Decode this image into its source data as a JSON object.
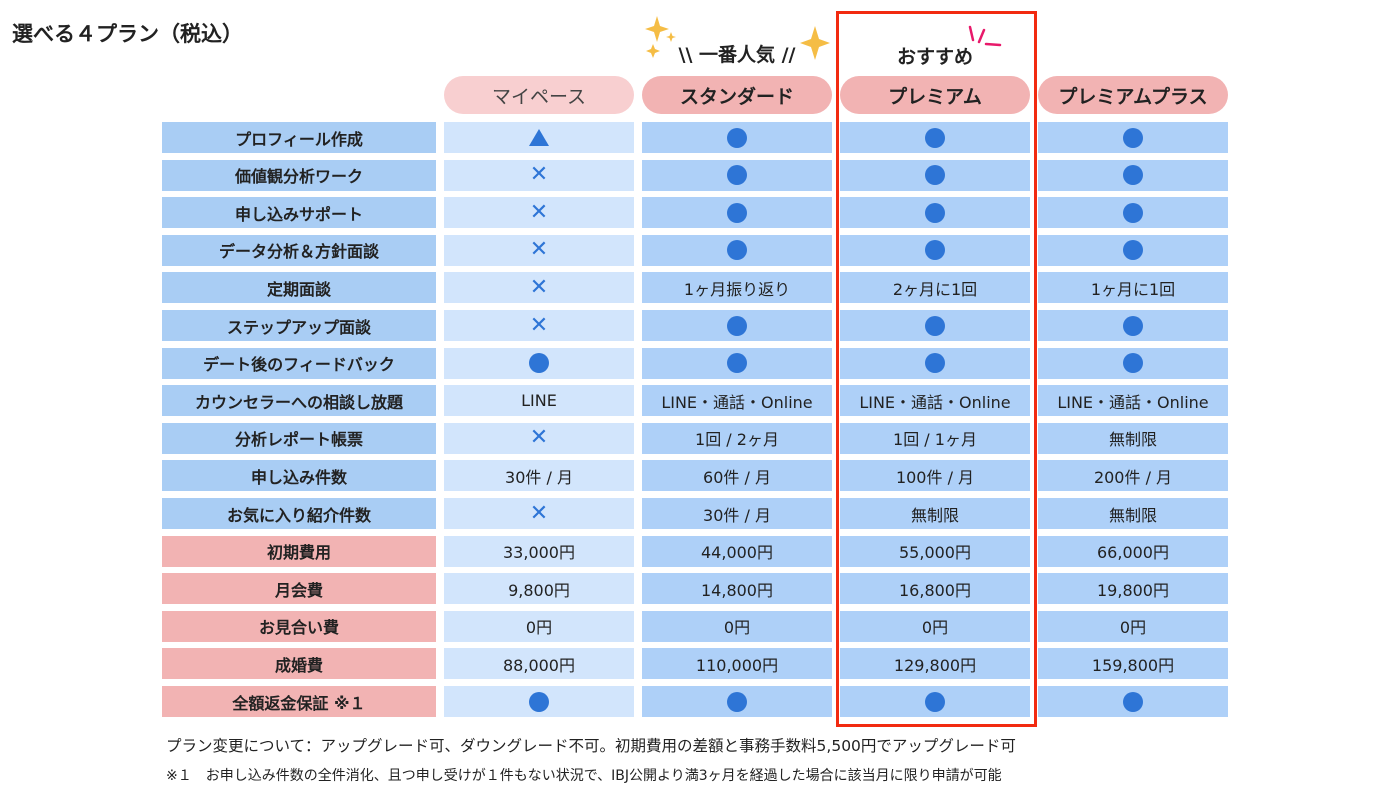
{
  "title": "選べる４プラン（税込）",
  "badges": {
    "popular": "\\\\ 一番人気 //",
    "recommend": "おすすめ"
  },
  "colors": {
    "highlight_border": "#f22a10",
    "icon": "#2e75d6",
    "feature_label": "#a9cdf4",
    "fee_label": "#f2b3b3"
  },
  "plans": [
    "マイペース",
    "スタンダード",
    "プレミアム",
    "プレミアムプラス"
  ],
  "rows": [
    {
      "label": "プロフィール作成",
      "type": "feature",
      "values": [
        "triangle",
        "circle",
        "circle",
        "circle"
      ]
    },
    {
      "label": "価値観分析ワーク",
      "type": "feature",
      "values": [
        "cross",
        "circle",
        "circle",
        "circle"
      ]
    },
    {
      "label": "申し込みサポート",
      "type": "feature",
      "values": [
        "cross",
        "circle",
        "circle",
        "circle"
      ]
    },
    {
      "label": "データ分析＆方針面談",
      "type": "feature",
      "values": [
        "cross",
        "circle",
        "circle",
        "circle"
      ]
    },
    {
      "label": "定期面談",
      "type": "feature",
      "values": [
        "cross",
        "1ヶ月振り返り",
        "2ヶ月に1回",
        "1ヶ月に1回"
      ]
    },
    {
      "label": "ステップアップ面談",
      "type": "feature",
      "values": [
        "cross",
        "circle",
        "circle",
        "circle"
      ]
    },
    {
      "label": "デート後のフィードバック",
      "type": "feature",
      "values": [
        "circle",
        "circle",
        "circle",
        "circle"
      ]
    },
    {
      "label": "カウンセラーへの相談し放題",
      "type": "feature",
      "values": [
        "LINE",
        "LINE・通話・Online",
        "LINE・通話・Online",
        "LINE・通話・Online"
      ]
    },
    {
      "label": "分析レポート帳票",
      "type": "feature",
      "values": [
        "cross",
        "1回 / 2ヶ月",
        "1回 / 1ヶ月",
        "無制限"
      ]
    },
    {
      "label": "申し込み件数",
      "type": "feature",
      "values": [
        "30件 / 月",
        "60件 / 月",
        "100件 / 月",
        "200件 / 月"
      ]
    },
    {
      "label": "お気に入り紹介件数",
      "type": "feature",
      "values": [
        "cross",
        "30件 / 月",
        "無制限",
        "無制限"
      ]
    },
    {
      "label": "初期費用",
      "type": "fee",
      "values": [
        "33,000円",
        "44,000円",
        "55,000円",
        "66,000円"
      ]
    },
    {
      "label": "月会費",
      "type": "fee",
      "values": [
        "9,800円",
        "14,800円",
        "16,800円",
        "19,800円"
      ]
    },
    {
      "label": "お見合い費",
      "type": "fee",
      "values": [
        "0円",
        "0円",
        "0円",
        "0円"
      ]
    },
    {
      "label": "成婚費",
      "type": "fee",
      "values": [
        "88,000円",
        "110,000円",
        "129,800円",
        "159,800円"
      ]
    },
    {
      "label": "全額返金保証 ※１",
      "type": "fee",
      "values": [
        "circle",
        "circle",
        "circle",
        "circle"
      ]
    }
  ],
  "notes": [
    "プラン変更について：アップグレード可、ダウングレード不可。初期費用の差額と事務手数料5,500円でアップグレード可",
    "※１　お申し込み件数の全件消化、且つ申し受けが１件もない状況で、IBJ公開より満3ヶ月を経過した場合に該当月に限り申請が可能"
  ]
}
